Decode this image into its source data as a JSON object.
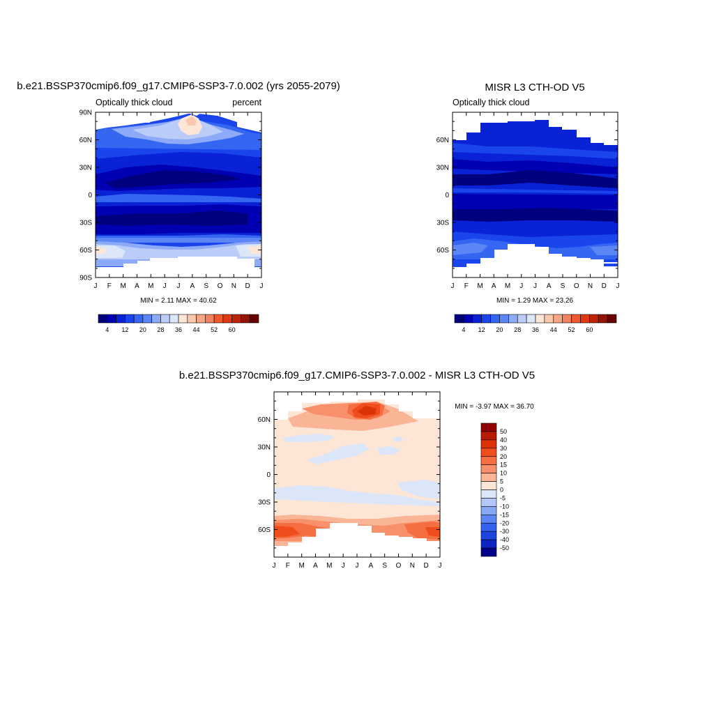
{
  "months": [
    "J",
    "F",
    "M",
    "A",
    "M",
    "J",
    "J",
    "A",
    "S",
    "O",
    "N",
    "D",
    "J"
  ],
  "lat_ticks": [
    "90N",
    "60N",
    "30N",
    "0",
    "30S",
    "60S",
    "90S"
  ],
  "abs_levels": [
    "4",
    "12",
    "20",
    "28",
    "36",
    "44",
    "52",
    "60"
  ],
  "diff_levels": [
    "50",
    "40",
    "30",
    "20",
    "15",
    "10",
    "5",
    "0",
    "-5",
    "-10",
    "-15",
    "-20",
    "-30",
    "-40",
    "-50"
  ],
  "abs_colors": [
    "#00007f",
    "#0000b2",
    "#0a22d6",
    "#1b45ec",
    "#3566f2",
    "#5c86f5",
    "#8caaf7",
    "#bcccf8",
    "#dbe6f8",
    "#fde6d6",
    "#f9c7ad",
    "#f5a685",
    "#f28160",
    "#f0582f",
    "#df3a12",
    "#bd2407",
    "#951303",
    "#6b0000"
  ],
  "diff_colors": [
    "#900000",
    "#b81b04",
    "#dc3305",
    "#f04d1c",
    "#f56e42",
    "#f7906b",
    "#f9b595",
    "#fde6d6",
    "#dbe7f8",
    "#b3c8f6",
    "#86a8f5",
    "#5b86f3",
    "#3262ee",
    "#1e44e0",
    "#0b24c2",
    "#00008a"
  ],
  "panels": [
    {
      "title": "b.e21.BSSP370cmip6.f09_g17.CMIP6-SSP3-7.0.002 (yrs 2055-2079)",
      "left_label": "Optically thick cloud",
      "right_label": "percent",
      "minmax": "MIN =   2.11 MAX =  40.62"
    },
    {
      "title": "MISR L3 CTH-OD V5",
      "left_label": "Optically thick cloud",
      "right_label": "",
      "minmax": "MIN =   1.29 MAX =  23.26"
    },
    {
      "title": "b.e21.BSSP370cmip6.f09_g17.CMIP6-SSP3-7.0.002 - MISR L3 CTH-OD V5",
      "left_label": "",
      "right_label": "",
      "minmax": "MIN =  -3.97 MAX =  36.70"
    }
  ],
  "chart_data": [
    {
      "type": "heatmap",
      "title": "b.e21.BSSP370cmip6.f09_g17.CMIP6-SSP3-7.0.002 (yrs 2055-2079)",
      "subtitle": "Optically thick cloud",
      "units": "percent",
      "x": [
        "J",
        "F",
        "M",
        "A",
        "M",
        "J",
        "J",
        "A",
        "S",
        "O",
        "N",
        "D",
        "J"
      ],
      "y_ticks": [
        "90N",
        "60N",
        "30N",
        "0",
        "30S",
        "60S",
        "90S"
      ],
      "ylim": [
        -90,
        90
      ],
      "min": 2.11,
      "max": 40.62,
      "colorbar_levels": [
        4,
        12,
        20,
        28,
        36,
        44,
        52,
        60
      ],
      "zonal_profile": [
        [
          -78,
          22
        ],
        [
          -70,
          24
        ],
        [
          -60,
          28
        ],
        [
          -50,
          16
        ],
        [
          -42,
          10
        ],
        [
          -30,
          8
        ],
        [
          -20,
          3
        ],
        [
          -12,
          6
        ],
        [
          -3,
          8
        ],
        [
          5,
          6
        ],
        [
          12,
          7
        ],
        [
          20,
          3
        ],
        [
          30,
          5
        ],
        [
          40,
          8
        ],
        [
          50,
          12
        ],
        [
          58,
          20
        ],
        [
          65,
          24
        ],
        [
          75,
          28
        ],
        [
          85,
          34
        ]
      ]
    },
    {
      "type": "heatmap",
      "title": "MISR L3 CTH-OD V5",
      "subtitle": "Optically thick cloud",
      "x": [
        "J",
        "F",
        "M",
        "A",
        "M",
        "J",
        "J",
        "A",
        "S",
        "O",
        "N",
        "D",
        "J"
      ],
      "y_ticks": [
        "60N",
        "30N",
        "0",
        "30S",
        "60S"
      ],
      "ylim": [
        -90,
        90
      ],
      "min": 1.29,
      "max": 23.26,
      "colorbar_levels": [
        4,
        12,
        20,
        28,
        36,
        44,
        52,
        60
      ],
      "zonal_profile": [
        [
          -75,
          14
        ],
        [
          -65,
          13
        ],
        [
          -55,
          11
        ],
        [
          -45,
          9
        ],
        [
          -35,
          8
        ],
        [
          -25,
          5
        ],
        [
          -18,
          3
        ],
        [
          -10,
          4
        ],
        [
          -3,
          6
        ],
        [
          5,
          4
        ],
        [
          12,
          3
        ],
        [
          20,
          4
        ],
        [
          28,
          5
        ],
        [
          38,
          7
        ],
        [
          48,
          9
        ],
        [
          55,
          11
        ],
        [
          65,
          13
        ],
        [
          75,
          12
        ]
      ]
    },
    {
      "type": "heatmap",
      "title": "b.e21.BSSP370cmip6.f09_g17.CMIP6-SSP3-7.0.002 - MISR L3 CTH-OD V5",
      "x": [
        "J",
        "F",
        "M",
        "A",
        "M",
        "J",
        "J",
        "A",
        "S",
        "O",
        "N",
        "D",
        "J"
      ],
      "y_ticks": [
        "60N",
        "30N",
        "0",
        "30S",
        "60S"
      ],
      "ylim": [
        -90,
        90
      ],
      "min": -3.97,
      "max": 36.7,
      "colorbar_levels": [
        50,
        40,
        30,
        20,
        15,
        10,
        5,
        0,
        -5,
        -10,
        -15,
        -20,
        -30,
        -40,
        -50
      ],
      "zonal_profile": [
        [
          -75,
          12
        ],
        [
          -65,
          18
        ],
        [
          -55,
          14
        ],
        [
          -45,
          6
        ],
        [
          -35,
          2
        ],
        [
          -25,
          -2
        ],
        [
          -15,
          1
        ],
        [
          0,
          2
        ],
        [
          10,
          3
        ],
        [
          20,
          1
        ],
        [
          30,
          -1
        ],
        [
          40,
          2
        ],
        [
          50,
          4
        ],
        [
          60,
          8
        ],
        [
          70,
          12
        ],
        [
          78,
          22
        ]
      ]
    }
  ]
}
